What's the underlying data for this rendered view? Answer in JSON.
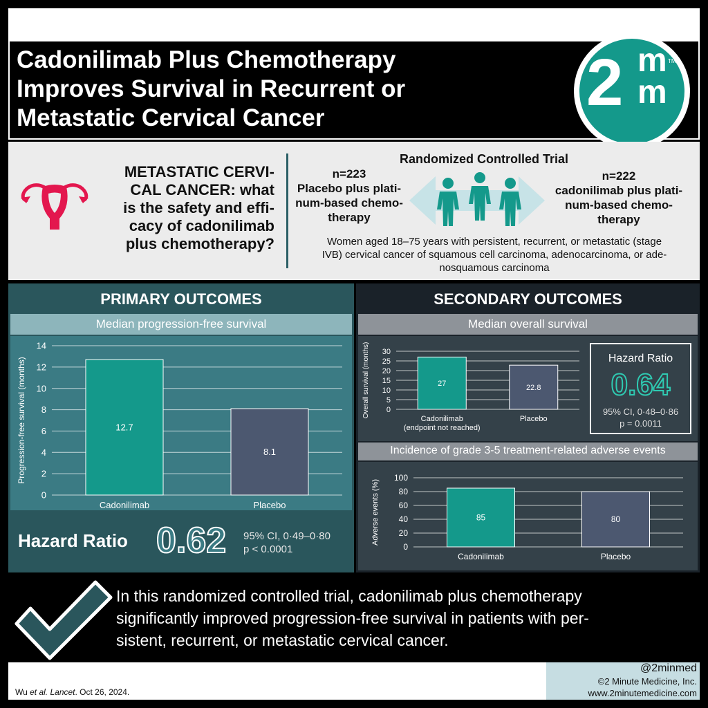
{
  "header": {
    "title": "Cadonilimab Plus Chemotherapy\nImproves Survival in Recurrent or\nMetastatic Cervical Cancer",
    "logo_number": "2",
    "logo_letter_top": "m",
    "logo_letter_bottom": "m",
    "logo_tm": "TM"
  },
  "question": {
    "text": "METASTATIC CERVI-\nCAL CANCER: what\nis the safety and effi-\ncacy of cadonilimab\nplus chemotherapy?",
    "trial_type": "Randomized Controlled Trial",
    "arm_placebo": "n=223\nPlacebo plus plati-\nnum-based chemo-\ntherapy",
    "arm_treatment": "n=222\ncadonilimab plus plati-\nnum-based chemo-\ntherapy",
    "population": "Women aged 18–75 years with persistent, recurrent, or metastatic (stage\nIVB) cervical cancer of squamous cell carcinoma, adenocarcinoma, or ade-\nnosquamous carcinoma"
  },
  "primary": {
    "title": "PRIMARY OUTCOMES",
    "chart_title": "Median progression-free survival",
    "hazard_label": "Hazard Ratio",
    "hazard_value": "0.62",
    "ci": "95% CI, 0·49–0·80",
    "p": "p < 0.0001"
  },
  "secondary": {
    "title": "SECONDARY OUTCOMES",
    "os_title": "Median overall survival",
    "hazard_label": "Hazard Ratio",
    "hazard_value": "0.64",
    "ci": "95% CI, 0·48–0·86",
    "p": "p = 0.0011",
    "ae_title": "Incidence of grade 3-5 treatment-related adverse events"
  },
  "conclusion": "In this randomized controlled trial, cadonilimab plus chemotherapy\nsignificantly improved progression-free survival in patients with per-\nsistent, recurrent, or metastatic cervical cancer.",
  "footer": {
    "citation_authors": "Wu ",
    "citation_etal": "et al.",
    "citation_journal": "Lancet",
    "citation_date": ". Oct 26, 2024.",
    "handle": "@2minmed",
    "copyright": "©2 Minute Medicine, Inc.",
    "website": "www.2minutemedicine.com"
  },
  "colors": {
    "treatment": "#14998b",
    "placebo": "#4c5870",
    "primary_bg": "#2a565c",
    "secondary_bg": "#1a2229"
  },
  "chart_data": [
    {
      "type": "bar",
      "title": "Median progression-free survival",
      "ylabel": "Progression-free survival (months)",
      "categories": [
        "Cadonilimab",
        "Placebo"
      ],
      "values": [
        12.7,
        8.1
      ],
      "labels": [
        "12.7",
        "8.1"
      ],
      "ylim": [
        0,
        14
      ],
      "yticks": [
        0,
        2,
        4,
        6,
        8,
        10,
        12,
        14
      ],
      "grid": true
    },
    {
      "type": "bar",
      "title": "Median overall survival",
      "ylabel": "Overall survival (months)",
      "categories": [
        "Cadonilimab (endpoint not reached)",
        "Placebo"
      ],
      "category_lines": [
        [
          "Cadonilimab",
          "(endpoint not reached)"
        ],
        [
          "Placebo"
        ]
      ],
      "values": [
        27,
        22.8
      ],
      "labels": [
        "27",
        "22.8"
      ],
      "ylim": [
        0,
        30
      ],
      "yticks": [
        0,
        5,
        10,
        15,
        20,
        25,
        30
      ],
      "grid": true
    },
    {
      "type": "bar",
      "title": "Incidence of grade 3-5 treatment-related adverse events",
      "ylabel": "Adverse events (%)",
      "categories": [
        "Cadonilimab",
        "Placebo"
      ],
      "values": [
        85,
        80
      ],
      "labels": [
        "85",
        "80"
      ],
      "ylim": [
        0,
        100
      ],
      "yticks": [
        0,
        20,
        40,
        60,
        80,
        100
      ],
      "grid": true
    }
  ]
}
